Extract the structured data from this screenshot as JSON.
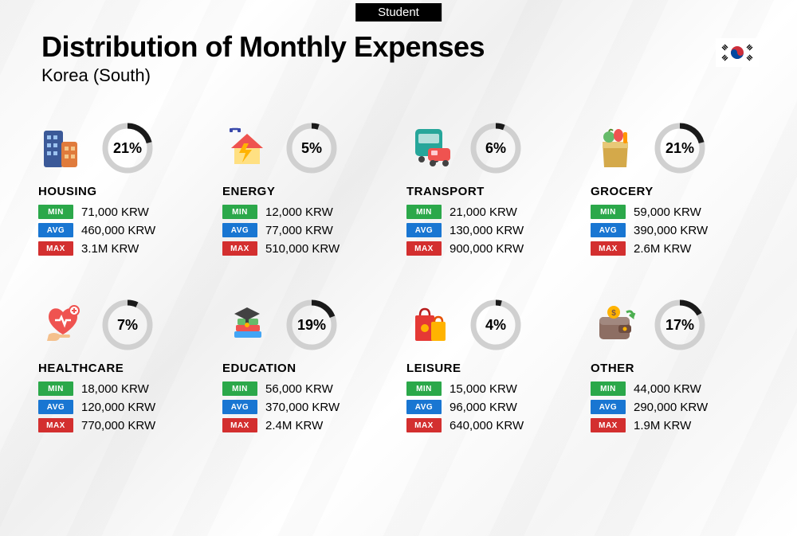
{
  "badge": "Student",
  "title": "Distribution of Monthly Expenses",
  "subtitle": "Korea (South)",
  "currency": "KRW",
  "labels": {
    "min": "MIN",
    "avg": "AVG",
    "max": "MAX"
  },
  "colors": {
    "min": "#2ba84a",
    "avg": "#1976d2",
    "max": "#d32f2f",
    "ring_fg": "#1a1a1a",
    "ring_bg": "#d0d0d0",
    "background": "#f5f5f5"
  },
  "ring": {
    "radius": 28,
    "stroke_width": 7
  },
  "categories": [
    {
      "key": "housing",
      "name": "HOUSING",
      "pct": 21,
      "min": "71,000 KRW",
      "avg": "460,000 KRW",
      "max": "3.1M KRW",
      "icon": "buildings"
    },
    {
      "key": "energy",
      "name": "ENERGY",
      "pct": 5,
      "min": "12,000 KRW",
      "avg": "77,000 KRW",
      "max": "510,000 KRW",
      "icon": "house-bolt"
    },
    {
      "key": "transport",
      "name": "TRANSPORT",
      "pct": 6,
      "min": "21,000 KRW",
      "avg": "130,000 KRW",
      "max": "900,000 KRW",
      "icon": "bus-car"
    },
    {
      "key": "grocery",
      "name": "GROCERY",
      "pct": 21,
      "min": "59,000 KRW",
      "avg": "390,000 KRW",
      "max": "2.6M KRW",
      "icon": "grocery-bag"
    },
    {
      "key": "healthcare",
      "name": "HEALTHCARE",
      "pct": 7,
      "min": "18,000 KRW",
      "avg": "120,000 KRW",
      "max": "770,000 KRW",
      "icon": "heart-hand"
    },
    {
      "key": "education",
      "name": "EDUCATION",
      "pct": 19,
      "min": "56,000 KRW",
      "avg": "370,000 KRW",
      "max": "2.4M KRW",
      "icon": "books-cap"
    },
    {
      "key": "leisure",
      "name": "LEISURE",
      "pct": 4,
      "min": "15,000 KRW",
      "avg": "96,000 KRW",
      "max": "640,000 KRW",
      "icon": "shopping-bags"
    },
    {
      "key": "other",
      "name": "OTHER",
      "pct": 17,
      "min": "44,000 KRW",
      "avg": "290,000 KRW",
      "max": "1.9M KRW",
      "icon": "wallet"
    }
  ]
}
